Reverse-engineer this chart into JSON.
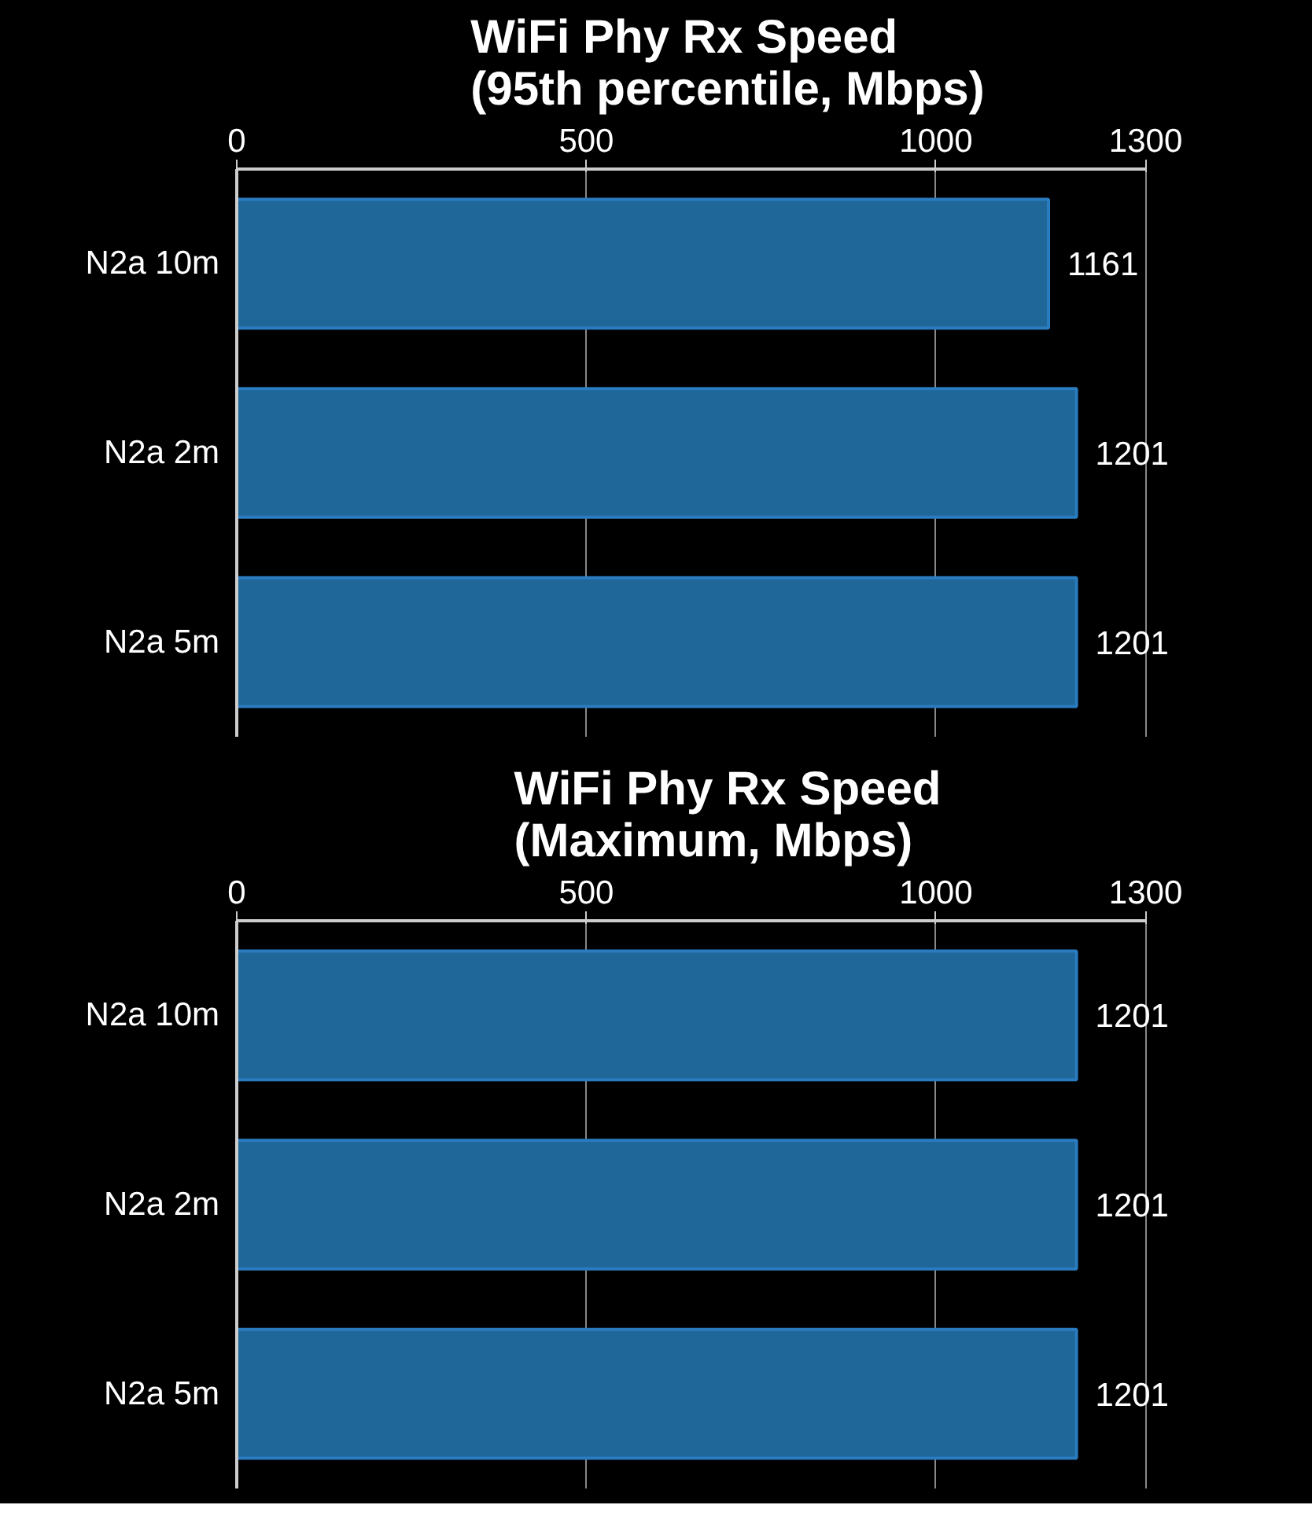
{
  "chart_data": [
    {
      "type": "bar",
      "orientation": "horizontal",
      "title": "WiFi Phy Rx Speed\n(95th percentile, Mbps)",
      "categories": [
        "N2a 10m",
        "N2a 2m",
        "N2a 5m"
      ],
      "values": [
        1161,
        1201,
        1201
      ],
      "color": "#1f6699",
      "xlim": [
        0,
        1300
      ],
      "xticks": [
        0,
        500,
        1000,
        1300
      ],
      "grid": "x",
      "data_labels": true
    },
    {
      "type": "bar",
      "orientation": "horizontal",
      "title": "WiFi Phy Rx Speed\n(Maximum, Mbps)",
      "categories": [
        "N2a 10m",
        "N2a 2m",
        "N2a 5m"
      ],
      "values": [
        1201,
        1201,
        1201
      ],
      "color": "#1f6699",
      "xlim": [
        0,
        1300
      ],
      "xticks": [
        0,
        500,
        1000,
        1300
      ],
      "grid": "x",
      "data_labels": true
    }
  ]
}
